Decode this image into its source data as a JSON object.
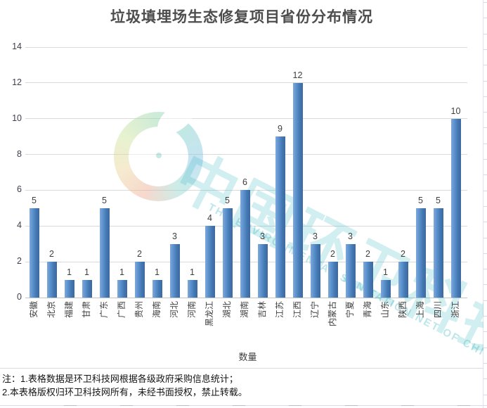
{
  "chart_data": {
    "type": "bar",
    "title": "垃圾填埋场生态修复项目省份分布情况",
    "categories": [
      "安徽",
      "北京",
      "福建",
      "甘肃",
      "广东",
      "广西",
      "贵州",
      "海南",
      "河北",
      "河南",
      "黑龙江",
      "湖北",
      "湖南",
      "吉林",
      "江苏",
      "江西",
      "辽宁",
      "内蒙古",
      "宁夏",
      "青海",
      "山东",
      "陕西",
      "上海",
      "四川",
      "浙江"
    ],
    "values": [
      5,
      2,
      1,
      1,
      5,
      1,
      2,
      1,
      3,
      1,
      4,
      5,
      6,
      3,
      9,
      12,
      3,
      2,
      3,
      2,
      1,
      2,
      5,
      5,
      10
    ],
    "series_name": "数量",
    "xlabel": "",
    "ylabel": "",
    "ylim": [
      0,
      14
    ],
    "ytick_step": 2,
    "yticks": [
      0,
      2,
      4,
      6,
      8,
      10,
      12,
      14
    ],
    "grid": "horizontal",
    "legend_position": "bottom",
    "data_labels": true,
    "x_label_rotation_deg": -90,
    "bar_gradient": [
      "#7fa9db",
      "#5b91cc",
      "#4479b4",
      "#3d689f"
    ],
    "legend_swatch_color": "#4a8dd0",
    "gridline_color": "#d9d9d9",
    "axis_line_color": "#c3c3c3",
    "label_color": "#3f3f3f"
  },
  "notes": {
    "line1": "注：1.表格数据是环卫科技网根据各级政府采购信息统计；",
    "line2": "2.本表格版权归环卫科技网所有，未经书面授权，禁止转载。"
  },
  "watermark": {
    "logo": "rainbow-swirl-logo",
    "text_cn": "中国环卫科技网",
    "text_en": "THE ENVIRONMENTAL SANITATION NET OF CHINA",
    "color": "#3eb6c2"
  }
}
